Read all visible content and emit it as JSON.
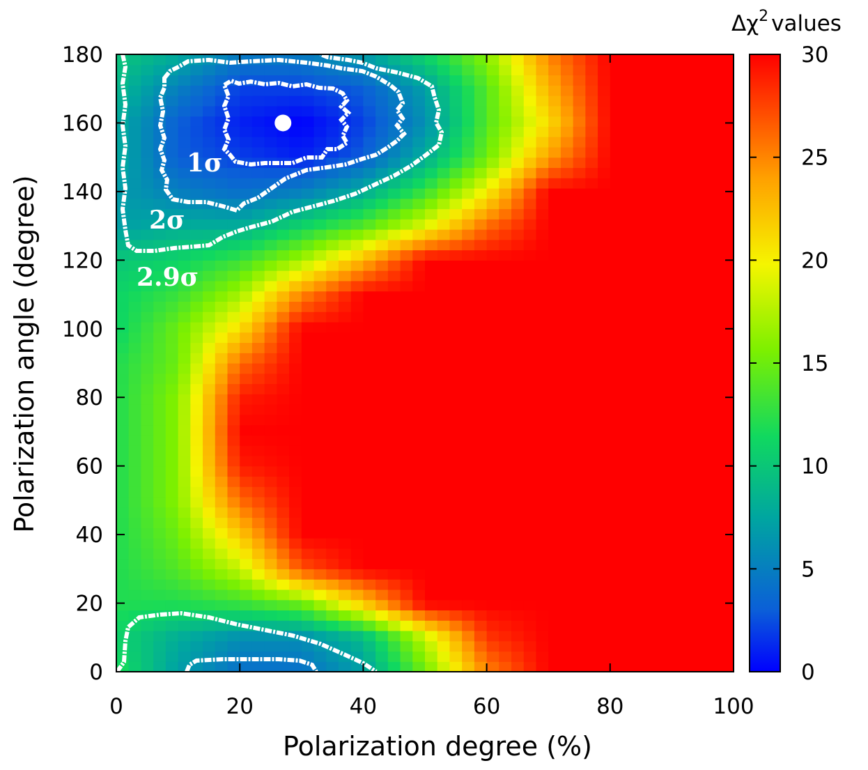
{
  "chart_data": {
    "type": "heatmap",
    "xlabel": "Polarization degree (%)",
    "ylabel": "Polarization angle (degree)",
    "xlim": [
      0,
      100
    ],
    "ylim": [
      0,
      180
    ],
    "x_ticks": [
      "0",
      "20",
      "40",
      "60",
      "80",
      "100"
    ],
    "y_ticks": [
      "0",
      "20",
      "40",
      "60",
      "80",
      "100",
      "120",
      "140",
      "160",
      "180"
    ],
    "colorbar": {
      "title_prefix": "Δχ",
      "title_sup": "2",
      "title_suffix": "values",
      "range": [
        0,
        30
      ],
      "ticks": [
        "0",
        "5",
        "10",
        "15",
        "20",
        "25",
        "30"
      ],
      "colormap": [
        "#0000ff",
        "#0b5fd8",
        "#00a6a0",
        "#10d860",
        "#7cf000",
        "#f5f500",
        "#ffa000",
        "#ff5000",
        "#ff0000"
      ]
    },
    "contour_levels": [
      {
        "label": "1σ",
        "delta_chi2": 2.3
      },
      {
        "label": "2σ",
        "delta_chi2": 6.18
      },
      {
        "label": "2.9σ",
        "delta_chi2": 10.9
      }
    ],
    "best_fit": {
      "x": 27,
      "y": 160
    },
    "surface": {
      "x": [
        0,
        10,
        20,
        30,
        40,
        50,
        60,
        70,
        80,
        90,
        100
      ],
      "y": [
        0,
        10,
        20,
        30,
        40,
        50,
        60,
        70,
        80,
        90,
        100,
        110,
        120,
        130,
        140,
        150,
        160,
        170,
        180
      ],
      "z": [
        [
          12,
          7,
          4,
          4,
          7,
          15,
          25,
          30,
          30,
          30,
          30
        ],
        [
          11,
          8,
          6,
          6,
          9,
          18,
          28,
          30,
          30,
          30,
          30
        ],
        [
          12,
          12,
          13,
          15,
          22,
          30,
          30,
          30,
          30,
          30,
          30
        ],
        [
          12,
          14,
          18,
          27,
          30,
          30,
          30,
          30,
          30,
          30,
          30
        ],
        [
          12,
          15,
          22,
          30,
          30,
          30,
          30,
          30,
          30,
          30,
          30
        ],
        [
          12,
          16,
          26,
          30,
          30,
          30,
          30,
          30,
          30,
          30,
          30
        ],
        [
          12,
          16,
          29,
          30,
          30,
          30,
          30,
          30,
          30,
          30,
          30
        ],
        [
          12,
          16,
          30,
          30,
          30,
          30,
          30,
          30,
          30,
          30,
          30
        ],
        [
          12,
          16,
          29,
          30,
          30,
          30,
          30,
          30,
          30,
          30,
          30
        ],
        [
          12,
          15,
          26,
          30,
          30,
          30,
          30,
          30,
          30,
          30,
          30
        ],
        [
          11,
          15,
          21,
          30,
          30,
          30,
          30,
          30,
          30,
          30,
          30
        ],
        [
          11,
          13,
          17,
          25,
          30,
          30,
          30,
          30,
          30,
          30,
          30
        ],
        [
          10,
          11,
          13,
          17,
          23,
          30,
          30,
          30,
          30,
          30,
          30
        ],
        [
          7,
          8,
          8,
          11,
          14,
          19,
          26,
          30,
          30,
          30,
          30
        ],
        [
          7,
          5,
          4,
          5,
          8,
          13,
          20,
          30,
          30,
          30,
          30
        ],
        [
          8,
          3,
          2,
          1,
          3,
          8,
          15,
          24,
          30,
          30,
          30
        ],
        [
          8,
          3,
          1,
          0,
          2,
          6,
          14,
          21,
          30,
          30,
          30
        ],
        [
          9,
          5,
          2,
          2,
          3,
          7,
          14,
          23,
          30,
          30,
          30
        ],
        [
          10,
          8,
          5,
          5,
          7,
          11,
          16,
          25,
          30,
          30,
          30
        ]
      ]
    }
  }
}
